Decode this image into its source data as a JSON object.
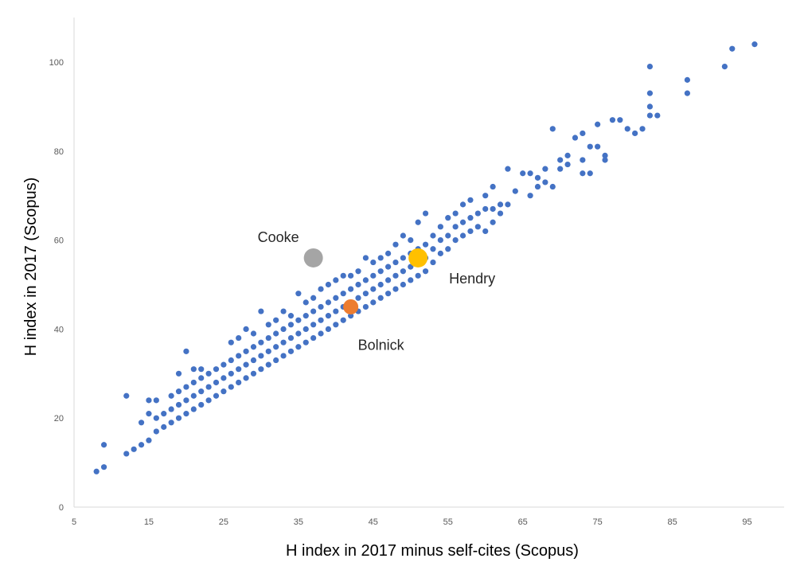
{
  "chart_data": {
    "type": "scatter",
    "title": "",
    "xlabel": "H index in 2017 minus self-cites (Scopus)",
    "ylabel": "H index in 2017 (Scopus)",
    "xlim": [
      5,
      100
    ],
    "ylim": [
      0,
      110
    ],
    "xticks": [
      5,
      15,
      25,
      35,
      45,
      55,
      65,
      75,
      85,
      95
    ],
    "yticks": [
      0,
      20,
      40,
      60,
      80,
      100
    ],
    "grid": false,
    "legend": "none",
    "series": [
      {
        "color": "#4472c4",
        "points": [
          [
            8,
            8
          ],
          [
            9,
            9
          ],
          [
            9,
            14
          ],
          [
            12,
            12
          ],
          [
            12,
            25
          ],
          [
            13,
            13
          ],
          [
            14,
            14
          ],
          [
            14,
            19
          ],
          [
            15,
            15
          ],
          [
            15,
            21
          ],
          [
            15,
            24
          ],
          [
            16,
            17
          ],
          [
            16,
            20
          ],
          [
            16,
            24
          ],
          [
            17,
            18
          ],
          [
            17,
            21
          ],
          [
            18,
            19
          ],
          [
            18,
            22
          ],
          [
            18,
            25
          ],
          [
            19,
            20
          ],
          [
            19,
            23
          ],
          [
            19,
            26
          ],
          [
            19,
            30
          ],
          [
            20,
            21
          ],
          [
            20,
            24
          ],
          [
            20,
            27
          ],
          [
            20,
            35
          ],
          [
            21,
            22
          ],
          [
            21,
            25
          ],
          [
            21,
            28
          ],
          [
            21,
            31
          ],
          [
            22,
            23
          ],
          [
            22,
            26
          ],
          [
            22,
            29
          ],
          [
            22,
            31
          ],
          [
            23,
            24
          ],
          [
            23,
            27
          ],
          [
            23,
            30
          ],
          [
            24,
            25
          ],
          [
            24,
            28
          ],
          [
            24,
            31
          ],
          [
            25,
            26
          ],
          [
            25,
            29
          ],
          [
            25,
            32
          ],
          [
            26,
            27
          ],
          [
            26,
            30
          ],
          [
            26,
            33
          ],
          [
            26,
            37
          ],
          [
            27,
            28
          ],
          [
            27,
            31
          ],
          [
            27,
            34
          ],
          [
            27,
            38
          ],
          [
            28,
            29
          ],
          [
            28,
            32
          ],
          [
            28,
            35
          ],
          [
            28,
            40
          ],
          [
            29,
            30
          ],
          [
            29,
            33
          ],
          [
            29,
            36
          ],
          [
            29,
            39
          ],
          [
            30,
            31
          ],
          [
            30,
            34
          ],
          [
            30,
            37
          ],
          [
            30,
            44
          ],
          [
            31,
            32
          ],
          [
            31,
            35
          ],
          [
            31,
            38
          ],
          [
            31,
            41
          ],
          [
            32,
            33
          ],
          [
            32,
            36
          ],
          [
            32,
            39
          ],
          [
            32,
            42
          ],
          [
            33,
            34
          ],
          [
            33,
            37
          ],
          [
            33,
            40
          ],
          [
            33,
            44
          ],
          [
            34,
            35
          ],
          [
            34,
            38
          ],
          [
            34,
            41
          ],
          [
            34,
            43
          ],
          [
            35,
            36
          ],
          [
            35,
            39
          ],
          [
            35,
            42
          ],
          [
            35,
            48
          ],
          [
            36,
            37
          ],
          [
            36,
            40
          ],
          [
            36,
            43
          ],
          [
            36,
            46
          ],
          [
            37,
            38
          ],
          [
            37,
            41
          ],
          [
            37,
            44
          ],
          [
            37,
            47
          ],
          [
            38,
            39
          ],
          [
            38,
            42
          ],
          [
            38,
            45
          ],
          [
            38,
            49
          ],
          [
            39,
            40
          ],
          [
            39,
            43
          ],
          [
            39,
            46
          ],
          [
            39,
            50
          ],
          [
            40,
            41
          ],
          [
            40,
            44
          ],
          [
            40,
            47
          ],
          [
            40,
            51
          ],
          [
            41,
            42
          ],
          [
            41,
            45
          ],
          [
            41,
            48
          ],
          [
            41,
            52
          ],
          [
            42,
            43
          ],
          [
            42,
            46
          ],
          [
            42,
            49
          ],
          [
            42,
            52
          ],
          [
            43,
            44
          ],
          [
            43,
            47
          ],
          [
            43,
            50
          ],
          [
            43,
            53
          ],
          [
            44,
            45
          ],
          [
            44,
            48
          ],
          [
            44,
            51
          ],
          [
            44,
            56
          ],
          [
            45,
            46
          ],
          [
            45,
            49
          ],
          [
            45,
            52
          ],
          [
            45,
            55
          ],
          [
            46,
            47
          ],
          [
            46,
            50
          ],
          [
            46,
            53
          ],
          [
            46,
            56
          ],
          [
            47,
            48
          ],
          [
            47,
            51
          ],
          [
            47,
            54
          ],
          [
            47,
            57
          ],
          [
            48,
            49
          ],
          [
            48,
            52
          ],
          [
            48,
            55
          ],
          [
            48,
            59
          ],
          [
            49,
            50
          ],
          [
            49,
            53
          ],
          [
            49,
            56
          ],
          [
            49,
            61
          ],
          [
            50,
            51
          ],
          [
            50,
            54
          ],
          [
            50,
            57
          ],
          [
            50,
            60
          ],
          [
            51,
            52
          ],
          [
            51,
            55
          ],
          [
            51,
            58
          ],
          [
            51,
            64
          ],
          [
            52,
            53
          ],
          [
            52,
            56
          ],
          [
            52,
            59
          ],
          [
            52,
            66
          ],
          [
            53,
            55
          ],
          [
            53,
            58
          ],
          [
            53,
            61
          ],
          [
            54,
            57
          ],
          [
            54,
            60
          ],
          [
            54,
            63
          ],
          [
            55,
            58
          ],
          [
            55,
            61
          ],
          [
            55,
            65
          ],
          [
            56,
            60
          ],
          [
            56,
            63
          ],
          [
            56,
            66
          ],
          [
            57,
            61
          ],
          [
            57,
            64
          ],
          [
            57,
            68
          ],
          [
            58,
            62
          ],
          [
            58,
            65
          ],
          [
            58,
            69
          ],
          [
            59,
            63
          ],
          [
            59,
            66
          ],
          [
            60,
            62
          ],
          [
            60,
            67
          ],
          [
            60,
            70
          ],
          [
            61,
            64
          ],
          [
            61,
            67
          ],
          [
            61,
            72
          ],
          [
            62,
            66
          ],
          [
            62,
            68
          ],
          [
            63,
            68
          ],
          [
            63,
            76
          ],
          [
            64,
            71
          ],
          [
            65,
            75
          ],
          [
            66,
            70
          ],
          [
            66,
            75
          ],
          [
            67,
            72
          ],
          [
            67,
            74
          ],
          [
            68,
            73
          ],
          [
            68,
            76
          ],
          [
            69,
            72
          ],
          [
            69,
            85
          ],
          [
            70,
            76
          ],
          [
            70,
            78
          ],
          [
            71,
            77
          ],
          [
            71,
            79
          ],
          [
            72,
            83
          ],
          [
            73,
            75
          ],
          [
            73,
            78
          ],
          [
            73,
            84
          ],
          [
            74,
            75
          ],
          [
            74,
            81
          ],
          [
            75,
            81
          ],
          [
            75,
            86
          ],
          [
            76,
            78
          ],
          [
            76,
            79
          ],
          [
            77,
            87
          ],
          [
            78,
            87
          ],
          [
            79,
            85
          ],
          [
            80,
            84
          ],
          [
            81,
            85
          ],
          [
            82,
            88
          ],
          [
            82,
            90
          ],
          [
            82,
            93
          ],
          [
            82,
            99
          ],
          [
            83,
            88
          ],
          [
            87,
            93
          ],
          [
            87,
            96
          ],
          [
            92,
            99
          ],
          [
            93,
            103
          ],
          [
            96,
            104
          ]
        ]
      }
    ],
    "highlighted": [
      {
        "name": "Cooke",
        "x": 37,
        "y": 56,
        "color": "#a5a5a5"
      },
      {
        "name": "Bolnick",
        "x": 42,
        "y": 45,
        "color": "#ed7d31"
      },
      {
        "name": "Hendry",
        "x": 51,
        "y": 56,
        "color": "#ffc000"
      }
    ]
  }
}
